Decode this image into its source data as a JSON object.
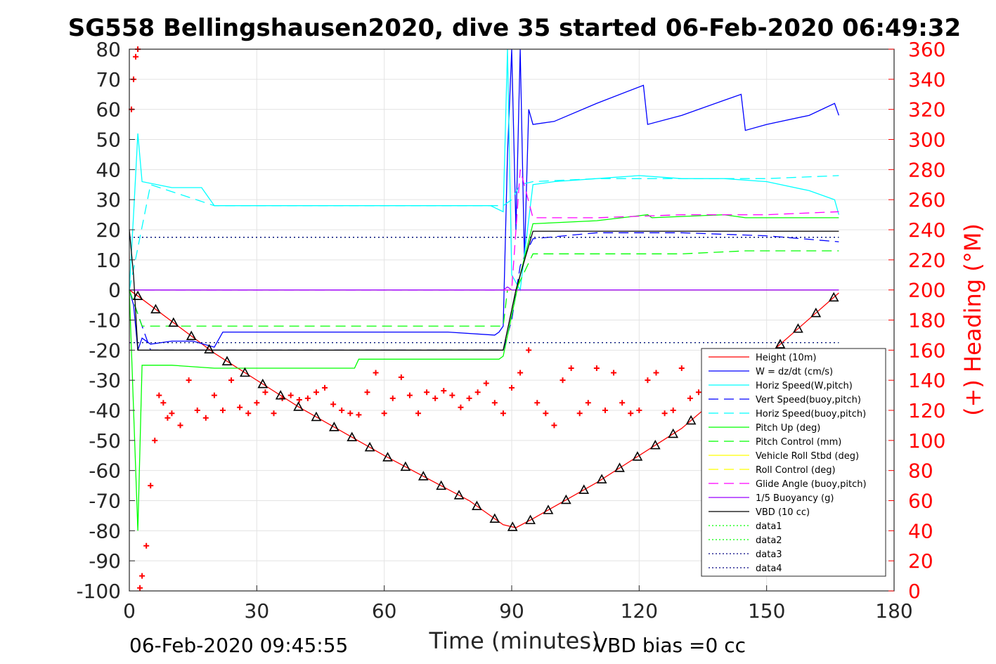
{
  "chart_data": {
    "type": "line",
    "title": "SG558 Bellingshausen2020, dive 35 started 06-Feb-2020 06:49:32",
    "xlabel": "Time (minutes)",
    "ylabel_right": "(+) Heading (°M)",
    "xlim": [
      0,
      180
    ],
    "ylim_left": [
      -100,
      80
    ],
    "ylim_right": [
      0,
      360
    ],
    "x_ticks": [
      0,
      30,
      60,
      90,
      120,
      150,
      180
    ],
    "y_ticks_left": [
      -100,
      -90,
      -80,
      -70,
      -60,
      -50,
      -40,
      -30,
      -20,
      -10,
      0,
      10,
      20,
      30,
      40,
      50,
      60,
      70,
      80
    ],
    "y_ticks_right": [
      0,
      20,
      40,
      60,
      80,
      100,
      120,
      140,
      160,
      180,
      200,
      220,
      240,
      260,
      280,
      300,
      320,
      340,
      360
    ],
    "grid": true,
    "legend_location": "lower-right inside",
    "footer_left": "06-Feb-2020 09:45:55",
    "footer_right": "VBD bias =0 cc",
    "series": [
      {
        "name": "Height (10m)",
        "color": "#ff0000",
        "style": "solid",
        "x": [
          0,
          2,
          20,
          40,
          60,
          80,
          88,
          91,
          95,
          110,
          130,
          150,
          167
        ],
        "y": [
          0,
          -2,
          -21,
          -39,
          -55,
          -70,
          -78,
          -79,
          -76,
          -64,
          -46,
          -22,
          -1
        ]
      },
      {
        "name": "W = dz/dt (cm/s)",
        "color": "#0000ff",
        "style": "solid",
        "x": [
          0,
          1,
          2,
          3,
          5,
          10,
          15,
          20,
          22,
          30,
          45,
          60,
          75,
          86,
          87,
          88,
          89,
          90,
          91,
          92,
          93,
          94,
          95,
          100,
          110,
          121,
          122,
          130,
          140,
          144,
          145,
          150,
          160,
          166,
          167
        ],
        "y": [
          0,
          -5,
          -20,
          -16,
          -18,
          -17,
          -17,
          -19,
          -14,
          -14,
          -14,
          -14,
          -14,
          -15,
          -14,
          -12,
          45,
          80,
          20,
          80,
          10,
          60,
          55,
          56,
          62,
          68,
          55,
          58,
          63,
          65,
          53,
          55,
          58,
          62,
          58
        ]
      },
      {
        "name": "Horiz Speed(W,pitch)",
        "color": "#00ffff",
        "style": "solid",
        "x": [
          0,
          1,
          2,
          3,
          10,
          17,
          20,
          30,
          45,
          60,
          75,
          85,
          88,
          89,
          90,
          92,
          95,
          100,
          110,
          120,
          130,
          140,
          150,
          160,
          166,
          167
        ],
        "y": [
          0,
          25,
          52,
          36,
          34,
          34,
          28,
          28,
          28,
          28,
          28,
          28,
          26,
          80,
          5,
          0,
          35,
          36,
          37,
          38,
          37,
          37,
          36,
          33,
          30,
          25
        ]
      },
      {
        "name": "Vert Speed(buoy,pitch)",
        "color": "#0000ff",
        "style": "dashed",
        "x": [
          0,
          5,
          20,
          40,
          60,
          80,
          88,
          90,
          92,
          95,
          110,
          130,
          150,
          167
        ],
        "y": [
          0,
          -20,
          -20,
          -20,
          -20,
          -20,
          -20,
          -10,
          8,
          17,
          19,
          19,
          18,
          16
        ]
      },
      {
        "name": "Horiz Speed(buoy,pitch)",
        "color": "#00ffff",
        "style": "dashed",
        "x": [
          0,
          5,
          20,
          40,
          60,
          80,
          88,
          90,
          92,
          95,
          110,
          130,
          150,
          167
        ],
        "y": [
          0,
          35,
          28,
          28,
          28,
          28,
          28,
          30,
          35,
          36,
          37,
          37,
          37,
          38
        ]
      },
      {
        "name": "Pitch Up (deg)",
        "color": "#00ff00",
        "style": "solid",
        "x": [
          0,
          2,
          3,
          10,
          20,
          30,
          45,
          53,
          54,
          70,
          87,
          88,
          92,
          95,
          110,
          122,
          123,
          140,
          145,
          167
        ],
        "y": [
          0,
          -80,
          -25,
          -25,
          -26,
          -26,
          -26,
          -26,
          -23,
          -23,
          -23,
          -22,
          5,
          22,
          23,
          25,
          24,
          25,
          24,
          24
        ]
      },
      {
        "name": "Pitch Control (mm)",
        "color": "#00ff00",
        "style": "dashed",
        "x": [
          0,
          3,
          20,
          40,
          60,
          80,
          88,
          89,
          90,
          91,
          95,
          110,
          130,
          145,
          167
        ],
        "y": [
          0,
          -12,
          -12,
          -12,
          -12,
          -12,
          -12,
          0,
          0,
          0,
          12,
          12,
          12,
          13,
          13
        ]
      },
      {
        "name": "Vehicle Roll Stbd (deg)",
        "color": "#ffff00",
        "style": "solid",
        "x": [
          0,
          167
        ],
        "y": [
          0,
          0
        ]
      },
      {
        "name": "Roll Control (deg)",
        "color": "#ffff00",
        "style": "dashed",
        "x": [
          0,
          167
        ],
        "y": [
          0,
          0
        ]
      },
      {
        "name": "Glide Angle (buoy,pitch)",
        "color": "#ff00ff",
        "style": "dashed",
        "x": [
          0,
          88,
          90,
          92,
          95,
          110,
          130,
          150,
          167
        ],
        "y": [
          0,
          0,
          0,
          40,
          24,
          24,
          25,
          25,
          26
        ]
      },
      {
        "name": "1/5 Buoyancy (g)",
        "color": "#9900ff",
        "style": "solid",
        "x": [
          0,
          88,
          89,
          90,
          95,
          167
        ],
        "y": [
          0,
          0,
          1,
          0,
          0,
          0
        ]
      },
      {
        "name": "VBD (10 cc)",
        "color": "#000000",
        "style": "solid",
        "x": [
          0,
          1,
          2,
          20,
          40,
          60,
          88,
          91,
          95,
          110,
          130,
          150,
          167
        ],
        "y": [
          20,
          5,
          -20,
          -20,
          -20,
          -20,
          -20,
          0,
          19.5,
          19.5,
          19.5,
          19.5,
          19.5
        ]
      },
      {
        "name": "data1",
        "color": "#00ff00",
        "style": "dotted",
        "x": [
          0,
          167
        ],
        "y": [
          17.5,
          17.5
        ]
      },
      {
        "name": "data2",
        "color": "#00ff00",
        "style": "dotted",
        "x": [
          0,
          167
        ],
        "y": [
          -17.5,
          -17.5
        ]
      },
      {
        "name": "data3",
        "color": "#000080",
        "style": "dotted",
        "x": [
          0,
          167
        ],
        "y": [
          17.5,
          17.5
        ]
      },
      {
        "name": "data4",
        "color": "#000080",
        "style": "dotted",
        "x": [
          0,
          167
        ],
        "y": [
          -17.5,
          -17.5
        ]
      }
    ],
    "heading_series": {
      "name": "(+) Heading (°M)",
      "color": "#ff0000",
      "axis": "right",
      "x": [
        0.5,
        1,
        1.5,
        2,
        2.5,
        3,
        4,
        5,
        6,
        7,
        8,
        9,
        10,
        12,
        14,
        16,
        18,
        20,
        22,
        24,
        26,
        28,
        30,
        32,
        34,
        36,
        38,
        40,
        42,
        44,
        46,
        48,
        50,
        52,
        54,
        56,
        58,
        60,
        62,
        64,
        66,
        68,
        70,
        72,
        74,
        76,
        78,
        80,
        82,
        84,
        86,
        88,
        90,
        92,
        94,
        96,
        98,
        100,
        102,
        104,
        106,
        108,
        110,
        112,
        114,
        116,
        118,
        120,
        122,
        124,
        126,
        128,
        130,
        132,
        134,
        136,
        138,
        140,
        142,
        144,
        146,
        148,
        150,
        152,
        154,
        156,
        158,
        160,
        162,
        164,
        166
      ],
      "y": [
        320,
        340,
        355,
        360,
        2,
        10,
        30,
        70,
        100,
        130,
        125,
        115,
        118,
        110,
        140,
        120,
        115,
        130,
        120,
        140,
        122,
        118,
        125,
        132,
        118,
        128,
        130,
        127,
        128,
        132,
        135,
        124,
        120,
        118,
        117,
        132,
        145,
        118,
        128,
        142,
        130,
        118,
        132,
        128,
        133,
        130,
        122,
        128,
        132,
        138,
        125,
        118,
        135,
        145,
        160,
        125,
        118,
        110,
        140,
        148,
        118,
        125,
        148,
        120,
        145,
        125,
        118,
        120,
        140,
        145,
        118,
        120,
        148,
        128,
        132,
        118,
        140,
        135,
        122,
        138,
        130,
        120,
        138,
        128,
        140,
        132,
        128,
        135,
        140,
        130,
        132
      ]
    }
  }
}
